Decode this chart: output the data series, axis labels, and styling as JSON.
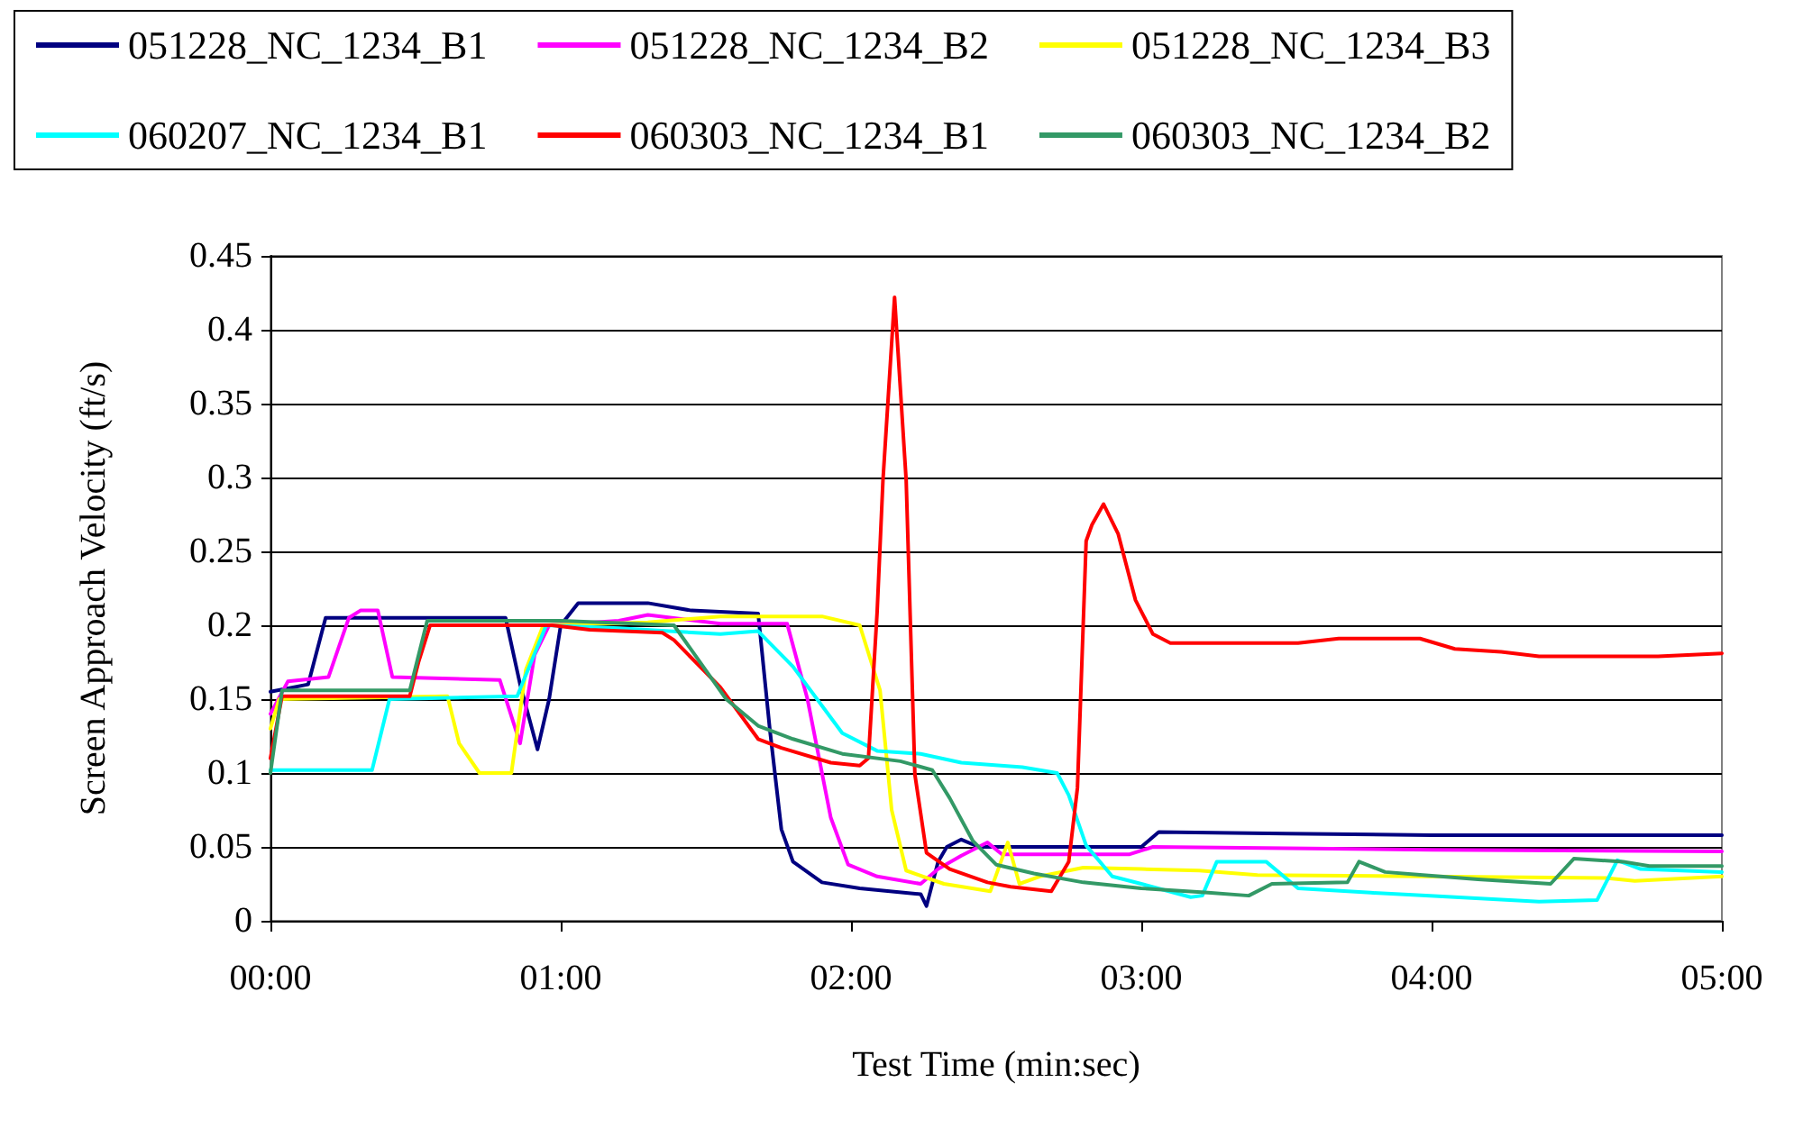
{
  "chart_data": {
    "type": "line",
    "xlabel": "Test Time (min:sec)",
    "ylabel": "Screen Approach Velocity (ft/s)",
    "xlim": [
      0,
      5
    ],
    "xticks": [
      {
        "value": 0,
        "label": "00:00"
      },
      {
        "value": 1,
        "label": "01:00"
      },
      {
        "value": 2,
        "label": "02:00"
      },
      {
        "value": 3,
        "label": "03:00"
      },
      {
        "value": 4,
        "label": "04:00"
      },
      {
        "value": 5,
        "label": "05:00"
      }
    ],
    "ylim": [
      0,
      0.45
    ],
    "yticks": [
      0,
      0.05,
      0.1,
      0.15,
      0.2,
      0.25,
      0.3,
      0.35,
      0.4,
      0.45
    ],
    "grid": "y",
    "legend": "top",
    "marker": "none",
    "line_style": "solid",
    "series": [
      {
        "name": "051228_NC_1234_B1",
        "color": "#000080",
        "x": [
          0,
          0.13,
          0.19,
          0.5,
          0.81,
          0.86,
          0.92,
          0.96,
          1.0,
          1.06,
          1.3,
          1.45,
          1.68,
          1.72,
          1.76,
          1.8,
          1.9,
          2.03,
          2.24,
          2.26,
          2.3,
          2.33,
          2.38,
          2.44,
          2.7,
          3.0,
          3.06,
          3.5,
          4.0,
          4.5,
          5.0
        ],
        "values": [
          0.155,
          0.16,
          0.205,
          0.205,
          0.205,
          0.16,
          0.116,
          0.15,
          0.2,
          0.215,
          0.215,
          0.21,
          0.208,
          0.13,
          0.062,
          0.04,
          0.026,
          0.022,
          0.018,
          0.01,
          0.04,
          0.05,
          0.055,
          0.05,
          0.05,
          0.05,
          0.06,
          0.059,
          0.058,
          0.058,
          0.058
        ]
      },
      {
        "name": "051228_NC_1234_B2",
        "color": "#ff00ff",
        "x": [
          0,
          0.06,
          0.2,
          0.27,
          0.31,
          0.37,
          0.42,
          0.79,
          0.86,
          0.91,
          0.96,
          1.2,
          1.3,
          1.55,
          1.78,
          1.85,
          1.93,
          1.99,
          2.09,
          2.24,
          2.3,
          2.38,
          2.47,
          2.52,
          2.96,
          3.04,
          4.0,
          5.0
        ],
        "values": [
          0.14,
          0.162,
          0.165,
          0.205,
          0.21,
          0.21,
          0.165,
          0.163,
          0.12,
          0.18,
          0.2,
          0.203,
          0.207,
          0.201,
          0.201,
          0.15,
          0.07,
          0.038,
          0.03,
          0.025,
          0.035,
          0.044,
          0.053,
          0.045,
          0.045,
          0.05,
          0.048,
          0.047
        ]
      },
      {
        "name": "051228_NC_1234_B3",
        "color": "#ffff00",
        "x": [
          0,
          0.03,
          0.61,
          0.65,
          0.72,
          0.83,
          0.88,
          0.94,
          1.3,
          1.55,
          1.9,
          2.03,
          2.1,
          2.14,
          2.19,
          2.32,
          2.48,
          2.54,
          2.58,
          2.65,
          2.8,
          3.0,
          3.2,
          3.4,
          4.6,
          4.7,
          5.0
        ],
        "values": [
          0.13,
          0.15,
          0.152,
          0.12,
          0.1,
          0.1,
          0.17,
          0.2,
          0.202,
          0.206,
          0.206,
          0.2,
          0.156,
          0.075,
          0.034,
          0.025,
          0.02,
          0.053,
          0.025,
          0.03,
          0.036,
          0.035,
          0.034,
          0.031,
          0.029,
          0.027,
          0.03
        ]
      },
      {
        "name": "060207_NC_1234_B1",
        "color": "#00ffff",
        "x": [
          0,
          0.35,
          0.41,
          0.85,
          0.95,
          1.2,
          1.55,
          1.68,
          1.8,
          1.97,
          2.09,
          2.24,
          2.38,
          2.59,
          2.71,
          2.75,
          2.81,
          2.9,
          3.0,
          3.17,
          3.21,
          3.26,
          3.43,
          3.54,
          3.79,
          3.98,
          4.37,
          4.57,
          4.64,
          4.72,
          5.0
        ],
        "values": [
          0.102,
          0.102,
          0.15,
          0.152,
          0.2,
          0.198,
          0.194,
          0.196,
          0.172,
          0.127,
          0.115,
          0.113,
          0.107,
          0.104,
          0.1,
          0.085,
          0.051,
          0.03,
          0.025,
          0.016,
          0.017,
          0.04,
          0.04,
          0.022,
          0.019,
          0.017,
          0.013,
          0.014,
          0.041,
          0.035,
          0.033
        ]
      },
      {
        "name": "060303_NC_1234_B1",
        "color": "#ff0000",
        "x": [
          0,
          0.04,
          0.48,
          0.51,
          0.55,
          0.97,
          1.1,
          1.35,
          1.39,
          1.55,
          1.68,
          1.76,
          1.93,
          2.03,
          2.06,
          2.09,
          2.11,
          2.15,
          2.19,
          2.22,
          2.26,
          2.34,
          2.47,
          2.55,
          2.69,
          2.75,
          2.78,
          2.81,
          2.83,
          2.87,
          2.92,
          2.98,
          3.04,
          3.1,
          3.54,
          3.68,
          3.96,
          4.08,
          4.24,
          4.37,
          4.78,
          5.0
        ],
        "values": [
          0.11,
          0.152,
          0.152,
          0.175,
          0.2,
          0.2,
          0.197,
          0.195,
          0.19,
          0.158,
          0.123,
          0.117,
          0.107,
          0.105,
          0.11,
          0.209,
          0.298,
          0.422,
          0.298,
          0.099,
          0.046,
          0.035,
          0.026,
          0.023,
          0.02,
          0.04,
          0.09,
          0.257,
          0.268,
          0.282,
          0.262,
          0.217,
          0.194,
          0.188,
          0.188,
          0.191,
          0.191,
          0.184,
          0.182,
          0.179,
          0.179,
          0.181
        ]
      },
      {
        "name": "060303_NC_1234_B2",
        "color": "#339966",
        "x": [
          0,
          0.04,
          0.48,
          0.54,
          1.0,
          1.39,
          1.57,
          1.68,
          1.8,
          1.97,
          2.17,
          2.28,
          2.34,
          2.42,
          2.5,
          2.63,
          2.8,
          3.0,
          3.23,
          3.37,
          3.45,
          3.71,
          3.75,
          3.84,
          3.97,
          4.16,
          4.41,
          4.49,
          4.66,
          4.75,
          5.0
        ],
        "values": [
          0.1,
          0.156,
          0.156,
          0.203,
          0.203,
          0.2,
          0.15,
          0.132,
          0.123,
          0.113,
          0.108,
          0.102,
          0.083,
          0.054,
          0.038,
          0.032,
          0.026,
          0.022,
          0.019,
          0.017,
          0.025,
          0.026,
          0.04,
          0.033,
          0.031,
          0.028,
          0.025,
          0.042,
          0.04,
          0.037,
          0.037
        ]
      }
    ]
  }
}
